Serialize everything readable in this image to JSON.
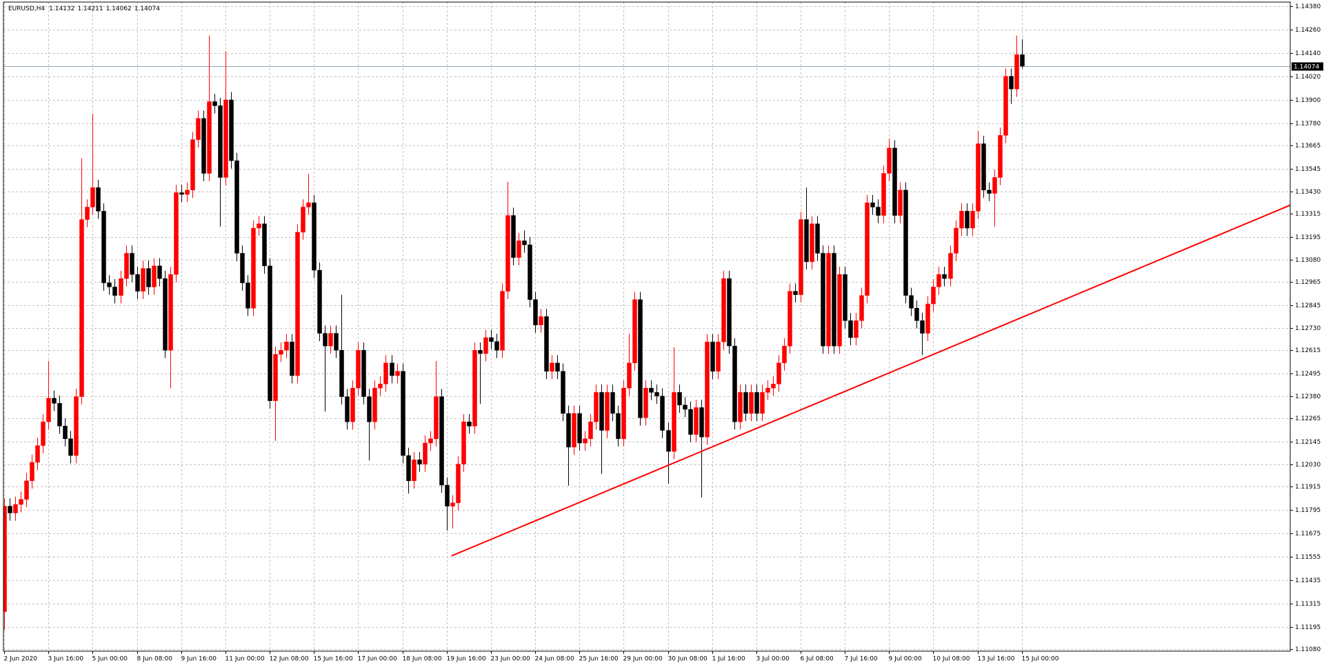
{
  "chart_data": {
    "type": "candlestick",
    "title": "EURUSD,H4",
    "categories": [
      "2 Jun 2020",
      null,
      null,
      null,
      null,
      null,
      null,
      null,
      "3 Jun 16:00",
      null,
      null,
      null,
      null,
      null,
      null,
      null,
      "5 Jun 00:00",
      null,
      null,
      null,
      null,
      null,
      null,
      null,
      "8 Jun 08:00",
      null,
      null,
      null,
      null,
      null,
      null,
      null,
      "9 Jun 16:00",
      null,
      null,
      null,
      null,
      null,
      null,
      null,
      "11 Jun 00:00",
      null,
      null,
      null,
      null,
      null,
      null,
      null,
      "12 Jun 08:00",
      null,
      null,
      null,
      null,
      null,
      null,
      null,
      "15 Jun 16:00",
      null,
      null,
      null,
      null,
      null,
      null,
      null,
      "17 Jun 00:00",
      null,
      null,
      null,
      null,
      null,
      null,
      null,
      "18 Jun 08:00",
      null,
      null,
      null,
      null,
      null,
      null,
      null,
      "19 Jun 16:00",
      null,
      null,
      null,
      null,
      null,
      null,
      null,
      "23 Jun 00:00",
      null,
      null,
      null,
      null,
      null,
      null,
      null,
      "24 Jun 08:00",
      null,
      null,
      null,
      null,
      null,
      null,
      null,
      "25 Jun 16:00",
      null,
      null,
      null,
      null,
      null,
      null,
      null,
      "29 Jun 00:00",
      null,
      null,
      null,
      null,
      null,
      null,
      null,
      "30 Jun 08:00",
      null,
      null,
      null,
      null,
      null,
      null,
      null,
      "1 Jul 16:00",
      null,
      null,
      null,
      null,
      null,
      null,
      null,
      "3 Jul 00:00",
      null,
      null,
      null,
      null,
      null,
      null,
      null,
      "6 Jul 08:00",
      null,
      null,
      null,
      null,
      null,
      null,
      null,
      "7 Jul 16:00",
      null,
      null,
      null,
      null,
      null,
      null,
      null,
      "9 Jul 00:00",
      null,
      null,
      null,
      null,
      null,
      null,
      null,
      "10 Jul 08:00",
      null,
      null,
      null,
      null,
      null,
      null,
      null,
      "13 Jul 16:00",
      null,
      null,
      null,
      null,
      null,
      null,
      null,
      "15 Jul 00:00"
    ],
    "open": [
      1.11274,
      1.11815,
      1.1178,
      1.11824,
      1.1185,
      1.11945,
      1.1204,
      1.12126,
      1.12248,
      1.12369,
      1.12343,
      1.12226,
      1.12161,
      1.12075,
      1.12377,
      1.13286,
      1.1335,
      1.1345,
      1.13329,
      1.12961,
      1.1294,
      1.12896,
      1.12983,
      1.13113,
      1.13004,
      1.12918,
      1.13035,
      1.1294,
      1.13048,
      1.12983,
      1.12615,
      1.13004,
      1.13424,
      1.13415,
      1.13437,
      1.13696,
      1.13805,
      1.13523,
      1.13891,
      1.1387,
      1.13502,
      1.139,
      1.13588,
      1.13113,
      1.12961,
      1.12831,
      1.13242,
      1.13264,
      1.13048,
      1.12356,
      1.12594,
      1.12615,
      1.12658,
      1.12485,
      1.13221,
      1.1335,
      1.13372,
      1.13026,
      1.12702,
      1.12637,
      1.12702,
      1.12615,
      1.12377,
      1.12248,
      1.12421,
      1.12615,
      1.12377,
      1.12248,
      1.12421,
      1.12442,
      1.1255,
      1.12485,
      1.12507,
      1.12075,
      1.11945,
      1.12053,
      1.12031,
      1.12139,
      1.12161,
      1.12377,
      1.11923,
      1.11815,
      1.11832,
      1.12031,
      1.12248,
      1.12226,
      1.12615,
      1.12598,
      1.1268,
      1.1266,
      1.12615,
      1.12918,
      1.13307,
      1.13091,
      1.13177,
      1.13156,
      1.12875,
      1.12745,
      1.12788,
      1.12507,
      1.1255,
      1.12507,
      1.12291,
      1.12118,
      1.12291,
      1.12139,
      1.12161,
      1.12248,
      1.12399,
      1.12204,
      1.12399,
      1.12291,
      1.12161,
      1.12421,
      1.1255,
      1.12875,
      1.12269,
      1.12421,
      1.12399,
      1.1238,
      1.12204,
      1.12096,
      1.12399,
      1.12334,
      1.12312,
      1.12183,
      1.12321,
      1.1217,
      1.12658,
      1.12507,
      1.12658,
      1.12983,
      1.12637,
      1.12248,
      1.12399,
      1.12291,
      1.12399,
      1.12291,
      1.12399,
      1.12421,
      1.12442,
      1.1255,
      1.12637,
      1.12918,
      1.129,
      1.13286,
      1.13069,
      1.13264,
      1.13113,
      1.12637,
      1.13113,
      1.12637,
      1.13004,
      1.12767,
      1.1268,
      1.12767,
      1.12896,
      1.13372,
      1.1335,
      1.13307,
      1.13523,
      1.13653,
      1.13307,
      1.13437,
      1.12896,
      1.12831,
      1.12767,
      1.12702,
      1.12853,
      1.1294,
      1.13004,
      1.12983,
      1.13113,
      1.13242,
      1.13329,
      1.13242,
      1.13329,
      1.13675,
      1.13437,
      1.1342,
      1.13502,
      1.13718,
      1.14021,
      1.13956,
      1.14132
    ],
    "high": [
      1.11855,
      1.11855,
      1.11864,
      1.1189,
      1.11985,
      1.1208,
      1.12166,
      1.12288,
      1.1256,
      1.12409,
      1.12383,
      1.12266,
      1.12201,
      1.12417,
      1.136,
      1.1339,
      1.1383,
      1.1349,
      1.13369,
      1.13001,
      1.1298,
      1.13023,
      1.13153,
      1.13153,
      1.13044,
      1.13075,
      1.13075,
      1.13088,
      1.13088,
      1.13023,
      1.13044,
      1.13464,
      1.13464,
      1.13477,
      1.13736,
      1.13845,
      1.13845,
      1.1423,
      1.13931,
      1.1391,
      1.1415,
      1.1394,
      1.13628,
      1.13153,
      1.13001,
      1.13282,
      1.13304,
      1.13304,
      1.13088,
      1.12634,
      1.12655,
      1.12698,
      1.12698,
      1.13261,
      1.1339,
      1.1352,
      1.13412,
      1.13066,
      1.12742,
      1.12742,
      1.12742,
      1.129,
      1.12417,
      1.12461,
      1.12655,
      1.12655,
      1.12417,
      1.12461,
      1.12482,
      1.1259,
      1.1259,
      1.12547,
      1.12547,
      1.12115,
      1.12093,
      1.12093,
      1.12179,
      1.12201,
      1.1256,
      1.12417,
      1.11963,
      1.11872,
      1.12071,
      1.12288,
      1.12288,
      1.12655,
      1.12655,
      1.1272,
      1.1272,
      1.127,
      1.12958,
      1.1348,
      1.13347,
      1.13217,
      1.1323,
      1.13196,
      1.12915,
      1.12828,
      1.12828,
      1.1259,
      1.1259,
      1.12547,
      1.12331,
      1.12331,
      1.12331,
      1.12201,
      1.12288,
      1.12439,
      1.12439,
      1.12439,
      1.12439,
      1.12331,
      1.12461,
      1.127,
      1.12915,
      1.12915,
      1.12461,
      1.12461,
      1.12439,
      1.1242,
      1.12244,
      1.1263,
      1.12439,
      1.12374,
      1.12352,
      1.12361,
      1.12361,
      1.12698,
      1.12698,
      1.12698,
      1.13023,
      1.13023,
      1.12677,
      1.12439,
      1.12439,
      1.12439,
      1.12439,
      1.12439,
      1.12461,
      1.12482,
      1.1259,
      1.12677,
      1.12958,
      1.12958,
      1.13326,
      1.1345,
      1.13304,
      1.13304,
      1.13153,
      1.13153,
      1.13153,
      1.13044,
      1.13044,
      1.12807,
      1.12807,
      1.12936,
      1.13412,
      1.13412,
      1.1339,
      1.13563,
      1.137,
      1.13693,
      1.13477,
      1.13477,
      1.12936,
      1.12871,
      1.12807,
      1.12893,
      1.1298,
      1.13044,
      1.13044,
      1.13153,
      1.13282,
      1.13369,
      1.13369,
      1.13369,
      1.1374,
      1.13715,
      1.13477,
      1.13542,
      1.13758,
      1.14061,
      1.14061,
      1.1423,
      1.14211
    ],
    "low": [
      1.1118,
      1.1174,
      1.1174,
      1.11784,
      1.1181,
      1.11905,
      1.12,
      1.12086,
      1.12208,
      1.12303,
      1.12186,
      1.12121,
      1.12035,
      1.12035,
      1.12337,
      1.13246,
      1.1331,
      1.13289,
      1.12921,
      1.129,
      1.12856,
      1.12856,
      1.12943,
      1.12964,
      1.12878,
      1.12878,
      1.129,
      1.129,
      1.12943,
      1.12575,
      1.1242,
      1.12964,
      1.13375,
      1.13375,
      1.13397,
      1.13656,
      1.13483,
      1.13483,
      1.1383,
      1.1325,
      1.13462,
      1.13548,
      1.13073,
      1.12921,
      1.12791,
      1.12791,
      1.13202,
      1.13008,
      1.12316,
      1.1215,
      1.12554,
      1.12575,
      1.12445,
      1.12445,
      1.13181,
      1.1331,
      1.12986,
      1.12662,
      1.123,
      1.12597,
      1.12575,
      1.12337,
      1.12208,
      1.12208,
      1.12381,
      1.12337,
      1.1205,
      1.12208,
      1.12381,
      1.12402,
      1.12445,
      1.12445,
      1.12035,
      1.1188,
      1.11905,
      1.11991,
      1.11991,
      1.12099,
      1.12121,
      1.11883,
      1.1169,
      1.117,
      1.11792,
      1.11991,
      1.12186,
      1.12186,
      1.1234,
      1.12558,
      1.1262,
      1.12575,
      1.12575,
      1.12878,
      1.13051,
      1.13051,
      1.13116,
      1.12835,
      1.12705,
      1.12705,
      1.12467,
      1.12467,
      1.12467,
      1.12251,
      1.1192,
      1.12078,
      1.12099,
      1.12099,
      1.12121,
      1.12208,
      1.1198,
      1.12164,
      1.12251,
      1.12121,
      1.12121,
      1.12381,
      1.1251,
      1.12229,
      1.12229,
      1.12359,
      1.1234,
      1.12164,
      1.1193,
      1.12056,
      1.12294,
      1.12272,
      1.12143,
      1.12143,
      1.1186,
      1.1213,
      1.12467,
      1.12467,
      1.12618,
      1.12597,
      1.12208,
      1.12208,
      1.12251,
      1.12251,
      1.12251,
      1.12251,
      1.12359,
      1.12381,
      1.12402,
      1.1251,
      1.12597,
      1.1286,
      1.1286,
      1.13029,
      1.13029,
      1.13073,
      1.12597,
      1.12597,
      1.12597,
      1.12597,
      1.12727,
      1.1264,
      1.1264,
      1.12727,
      1.12856,
      1.1331,
      1.13267,
      1.13267,
      1.13483,
      1.13267,
      1.13267,
      1.12856,
      1.12791,
      1.12727,
      1.1259,
      1.12662,
      1.12813,
      1.129,
      1.12943,
      1.12943,
      1.13073,
      1.13202,
      1.13202,
      1.13202,
      1.13289,
      1.13397,
      1.1338,
      1.1325,
      1.13462,
      1.13678,
      1.1388,
      1.13916,
      1.14062
    ],
    "close": [
      1.11815,
      1.1178,
      1.11824,
      1.1185,
      1.11945,
      1.1204,
      1.12126,
      1.12248,
      1.12369,
      1.12343,
      1.12226,
      1.12161,
      1.12075,
      1.12377,
      1.13286,
      1.1335,
      1.1345,
      1.13329,
      1.12961,
      1.1294,
      1.12896,
      1.12983,
      1.13113,
      1.13004,
      1.12918,
      1.13035,
      1.1294,
      1.13048,
      1.12983,
      1.12615,
      1.13004,
      1.13424,
      1.13415,
      1.13437,
      1.13696,
      1.13805,
      1.13523,
      1.13891,
      1.1387,
      1.13502,
      1.139,
      1.13588,
      1.13113,
      1.12961,
      1.12831,
      1.13242,
      1.13264,
      1.13048,
      1.12356,
      1.12594,
      1.12615,
      1.12658,
      1.12485,
      1.13221,
      1.1335,
      1.13372,
      1.13026,
      1.12702,
      1.12637,
      1.12702,
      1.12615,
      1.12377,
      1.12248,
      1.12421,
      1.12615,
      1.12377,
      1.12248,
      1.12421,
      1.12442,
      1.1255,
      1.12485,
      1.12507,
      1.12075,
      1.11945,
      1.12053,
      1.12031,
      1.12139,
      1.12161,
      1.12377,
      1.11923,
      1.11815,
      1.11832,
      1.12031,
      1.12248,
      1.12226,
      1.12615,
      1.12598,
      1.1268,
      1.1266,
      1.12615,
      1.12918,
      1.13307,
      1.13091,
      1.13177,
      1.13156,
      1.12875,
      1.12745,
      1.12788,
      1.12507,
      1.1255,
      1.12507,
      1.12291,
      1.12118,
      1.12291,
      1.12139,
      1.12161,
      1.12248,
      1.12399,
      1.12204,
      1.12399,
      1.12291,
      1.12161,
      1.12421,
      1.1255,
      1.12875,
      1.12269,
      1.12421,
      1.12399,
      1.1238,
      1.12204,
      1.12096,
      1.12399,
      1.12334,
      1.12312,
      1.12183,
      1.12321,
      1.1217,
      1.12658,
      1.12507,
      1.12658,
      1.12983,
      1.12637,
      1.12248,
      1.12399,
      1.12291,
      1.12399,
      1.12291,
      1.12399,
      1.12421,
      1.12442,
      1.1255,
      1.12637,
      1.12918,
      1.129,
      1.13286,
      1.13069,
      1.13264,
      1.13113,
      1.12637,
      1.13113,
      1.12637,
      1.13004,
      1.12767,
      1.1268,
      1.12767,
      1.12896,
      1.13372,
      1.1335,
      1.13307,
      1.13523,
      1.13653,
      1.13307,
      1.13437,
      1.12896,
      1.12831,
      1.12767,
      1.12702,
      1.12853,
      1.1294,
      1.13004,
      1.12983,
      1.13113,
      1.13242,
      1.13329,
      1.13242,
      1.13329,
      1.13675,
      1.13437,
      1.1342,
      1.13502,
      1.13718,
      1.14021,
      1.13956,
      1.14132,
      1.14074
    ],
    "up_color": "#ff0000",
    "down_color": "#000000",
    "ylim": [
      1.11071,
      1.14402
    ],
    "yticks": [
      {
        "value": 1.1438,
        "label": "1.14380"
      },
      {
        "value": 1.1426,
        "label": "1.14260"
      },
      {
        "value": 1.1414,
        "label": "1.14140"
      },
      {
        "value": 1.1402,
        "label": "1.14020"
      },
      {
        "value": 1.139,
        "label": "1.13900"
      },
      {
        "value": 1.1378,
        "label": "1.13780"
      },
      1.13665,
      1.13545,
      {
        "value": 1.1343,
        "label": "1.13430"
      },
      1.13315,
      1.13195,
      {
        "value": 1.1308,
        "label": "1.13080"
      },
      1.12965,
      1.12845,
      {
        "value": 1.1273,
        "label": "1.12730"
      },
      1.12615,
      1.12495,
      {
        "value": 1.1238,
        "label": "1.12380"
      },
      1.12265,
      1.12145,
      {
        "value": 1.1203,
        "label": "1.12030"
      },
      1.11915,
      1.11795,
      1.11675,
      1.11555,
      1.11435,
      1.11315,
      1.11195,
      {
        "value": 1.1108,
        "label": "1.11080"
      }
    ],
    "grid": true,
    "grid_color": "#c0c0c0",
    "bid_line_color": "#8fa4b8",
    "trendline": {
      "x": [
        80.9,
        232.8
      ],
      "y": [
        1.1156,
        1.13363
      ],
      "color": "#ff0000"
    }
  }
}
